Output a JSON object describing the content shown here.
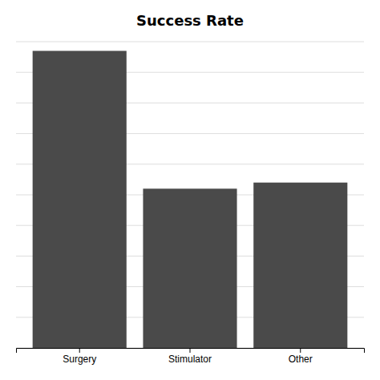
{
  "chart_data": {
    "type": "bar",
    "title": "Success Rate",
    "categories": [
      "Surgery",
      "Stimulator",
      "Other"
    ],
    "values": [
      97,
      52,
      54
    ],
    "color": "#4a4a4a",
    "ylim": [
      0,
      100
    ],
    "yticks": [
      0,
      10,
      20,
      30,
      40,
      50,
      60,
      70,
      80,
      90,
      100
    ],
    "grid": true,
    "tick_labels": "x"
  }
}
